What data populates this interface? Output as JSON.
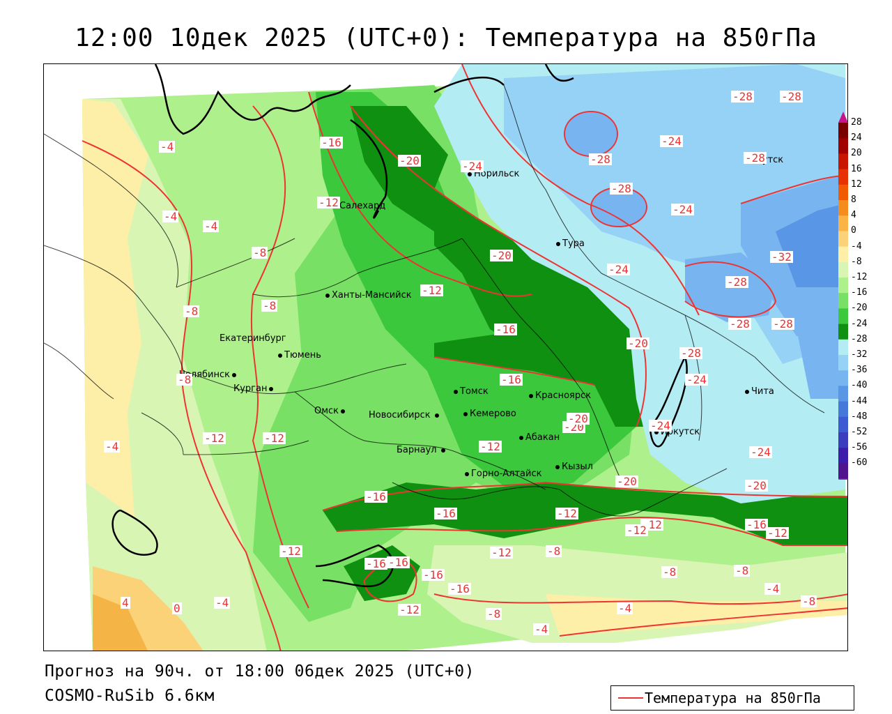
{
  "title": "12:00 10дек 2025 (UTC+0): Температура на 850гПа",
  "footer": {
    "forecast": "Прогноз на 90ч. от 18:00 06дек 2025 (UTC+0)",
    "model": "COSMO-RuSib 6.6км"
  },
  "legend": {
    "label": "Температура на 850гПа",
    "line_color": "#ee3333"
  },
  "scale": {
    "labels": [
      "28",
      "24",
      "20",
      "16",
      "12",
      "8",
      "4",
      "0",
      "-4",
      "-8",
      "-12",
      "-16",
      "-20",
      "-24",
      "-28",
      "-32",
      "-36",
      "-40",
      "-44",
      "-48",
      "-52",
      "-56",
      "-60"
    ],
    "colors": [
      "#7a0000",
      "#a00000",
      "#c81400",
      "#e63200",
      "#f05a00",
      "#f58c1e",
      "#fab446",
      "#fcd278",
      "#fdeea8",
      "#d8f5b4",
      "#aef08c",
      "#78e064",
      "#3cc83c",
      "#109010",
      "#b4ecf4",
      "#96d2f5",
      "#78b4f0",
      "#5a96e6",
      "#4678dc",
      "#3c5ad2",
      "#3c3cbe",
      "#3c1eaa",
      "#50148c"
    ]
  },
  "cities": [
    {
      "name": "Норильск"
    },
    {
      "name": "Якутск"
    },
    {
      "name": "Салехард"
    },
    {
      "name": "Тура"
    },
    {
      "name": "Ханты-Мансийск"
    },
    {
      "name": "Екатеринбург"
    },
    {
      "name": "Тюмень"
    },
    {
      "name": "Челябинск"
    },
    {
      "name": "Курган"
    },
    {
      "name": "Томск"
    },
    {
      "name": "Красноярск"
    },
    {
      "name": "Омск"
    },
    {
      "name": "Новосибирск"
    },
    {
      "name": "Кемерово"
    },
    {
      "name": "Абакан"
    },
    {
      "name": "Иркутск"
    },
    {
      "name": "Барнаул"
    },
    {
      "name": "Кызыл"
    },
    {
      "name": "Горно-Алтайск"
    },
    {
      "name": "Чита"
    }
  ],
  "isotherm_labels": [
    "-4",
    "-4",
    "-4",
    "-8",
    "-8",
    "-8",
    "-8",
    "-4",
    "4",
    "0",
    "-4",
    "-12",
    "-16",
    "-20",
    "-24",
    "-12",
    "-12",
    "-12",
    "-16",
    "-16",
    "-16",
    "-16",
    "-16",
    "-12",
    "-12",
    "-16",
    "-20",
    "-28",
    "-28",
    "-24",
    "-24",
    "-28",
    "-28",
    "-28",
    "-32",
    "-20",
    "-24",
    "-20",
    "-24",
    "-28",
    "-28",
    "-28",
    "-28",
    "-24",
    "-20",
    "-20",
    "-24",
    "-12",
    "-12",
    "-16",
    "-12",
    "-8",
    "-12",
    "-8",
    "-8",
    "-16",
    "-12",
    "-8",
    "-4",
    "-4",
    "-8",
    "-4",
    "-12",
    "-20",
    "-16"
  ]
}
